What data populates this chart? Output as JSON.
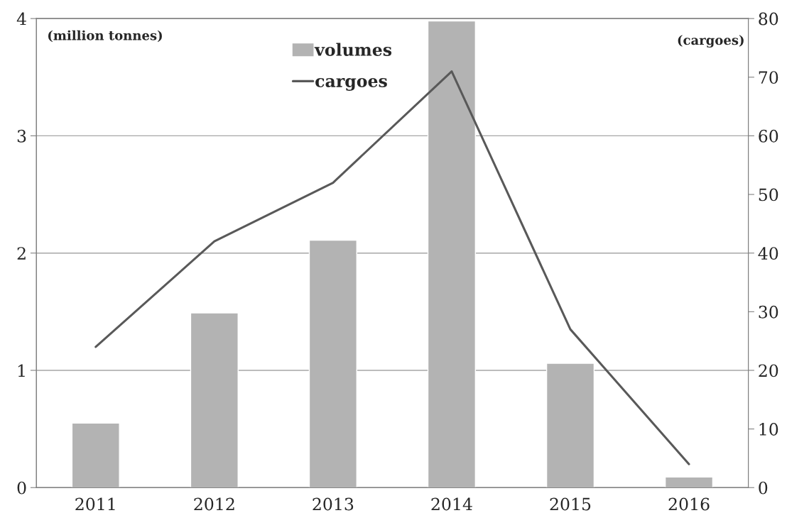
{
  "chart_data": {
    "type": "bar",
    "categories": [
      "2011",
      "2012",
      "2013",
      "2014",
      "2015",
      "2016"
    ],
    "ylabel": "(million tonnes)",
    "y2label": "(cargoes)",
    "ylim": [
      0,
      4
    ],
    "yticks": [
      0,
      1,
      2,
      3,
      4
    ],
    "y2lim": [
      0,
      80
    ],
    "y2ticks": [
      0,
      10,
      20,
      30,
      40,
      50,
      60,
      70,
      80
    ],
    "grid": "y",
    "legend": "top",
    "marker": "none",
    "line_style": "solid",
    "series": [
      {
        "name": "volumes",
        "color": "#b3b3b3",
        "values": [
          0.55,
          1.49,
          2.11,
          3.98,
          1.06,
          0.09
        ]
      },
      {
        "name": "cargoes",
        "type": "line",
        "axis": "y2",
        "color": "#595959",
        "values": [
          24,
          42,
          52,
          71,
          27,
          4
        ]
      }
    ]
  }
}
